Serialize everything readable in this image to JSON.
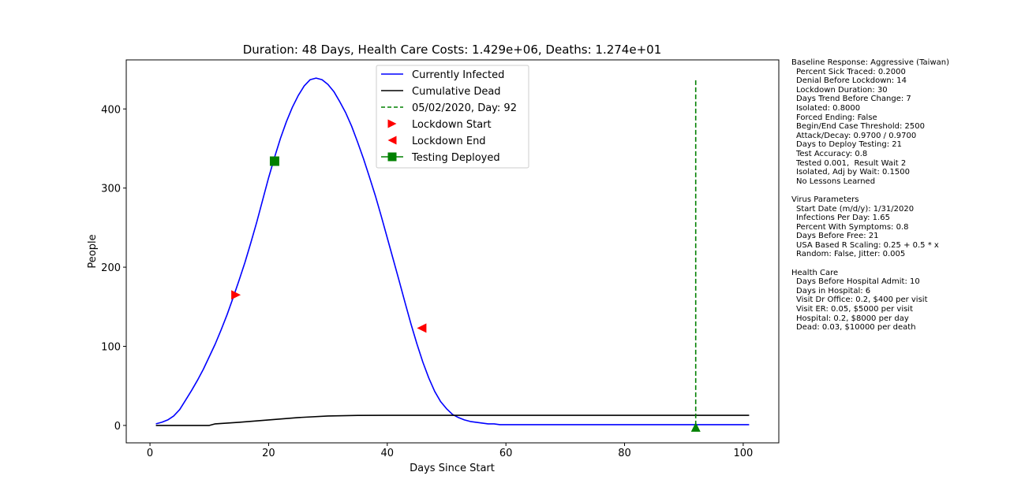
{
  "chart_data": {
    "type": "line",
    "title": "Duration: 48 Days,    Health Care Costs: 1.429e+06,    Deaths: 1.274e+01",
    "xlabel": "Days Since Start",
    "ylabel": "People",
    "xlim": [
      -4,
      106
    ],
    "ylim": [
      -22,
      462
    ],
    "x_ticks": [
      0,
      20,
      40,
      60,
      80,
      100
    ],
    "y_ticks": [
      0,
      100,
      200,
      300,
      400
    ],
    "grid": false,
    "legend_position": "top-center",
    "series": [
      {
        "name": "Currently Infected",
        "color": "#0000ff",
        "style": "solid",
        "x": [
          1,
          2,
          3,
          4,
          5,
          6,
          7,
          8,
          9,
          10,
          11,
          12,
          13,
          14,
          15,
          16,
          17,
          18,
          19,
          20,
          21,
          22,
          23,
          24,
          25,
          26,
          27,
          28,
          29,
          30,
          31,
          32,
          33,
          34,
          35,
          36,
          37,
          38,
          39,
          40,
          41,
          42,
          43,
          44,
          45,
          46,
          47,
          48,
          49,
          50,
          51,
          52,
          53,
          54,
          55,
          56,
          57,
          58,
          59,
          60,
          62,
          65,
          70,
          80,
          90,
          101
        ],
        "y": [
          2,
          4,
          7,
          12,
          20,
          32,
          44,
          57,
          71,
          87,
          103,
          121,
          140,
          161,
          183,
          206,
          231,
          257,
          285,
          313,
          339,
          363,
          384,
          402,
          417,
          429,
          437,
          439,
          437,
          431,
          422,
          409,
          395,
          378,
          358,
          337,
          314,
          290,
          264,
          237,
          210,
          183,
          155,
          128,
          103,
          80,
          60,
          43,
          30,
          21,
          14,
          10,
          7,
          5,
          4,
          3,
          2,
          2,
          1,
          1,
          1,
          1,
          1,
          1,
          1,
          1
        ]
      },
      {
        "name": "Cumulative Dead",
        "color": "#000000",
        "style": "solid",
        "x": [
          1,
          10,
          11,
          15,
          20,
          25,
          30,
          35,
          40,
          45,
          101
        ],
        "y": [
          0,
          0,
          2,
          4,
          7,
          10,
          12,
          12.7,
          12.74,
          12.74,
          12.74
        ]
      },
      {
        "name": "05/02/2020, Day: 92",
        "color": "#008000",
        "style": "dashed",
        "x": [
          92,
          92
        ],
        "y": [
          0,
          437
        ]
      }
    ],
    "markers": [
      {
        "name": "Lockdown Start",
        "shape": "triangle-right",
        "color": "#ff0000",
        "x": 14.5,
        "y": 165
      },
      {
        "name": "Lockdown End",
        "shape": "triangle-left",
        "color": "#ff0000",
        "x": 45.8,
        "y": 123
      },
      {
        "name": "Testing Deployed",
        "shape": "square",
        "color": "#008000",
        "x": 21,
        "y": 334
      },
      {
        "name": "day-92-marker",
        "shape": "triangle-up",
        "color": "#008000",
        "x": 92,
        "y": -2
      }
    ],
    "legend": [
      {
        "label": "Currently Infected",
        "kind": "line",
        "color": "#0000ff"
      },
      {
        "label": "Cumulative Dead",
        "kind": "line",
        "color": "#000000"
      },
      {
        "label": "05/02/2020, Day: 92",
        "kind": "dashed",
        "color": "#008000"
      },
      {
        "label": "Lockdown Start",
        "kind": "triangle-right",
        "color": "#ff0000"
      },
      {
        "label": "Lockdown End",
        "kind": "triangle-left",
        "color": "#ff0000"
      },
      {
        "label": "Testing Deployed",
        "kind": "square-line",
        "color": "#008000"
      }
    ]
  },
  "side_panel": {
    "sections": [
      {
        "heading": "Baseline Response: Aggressive (Taiwan)",
        "lines": [
          "Percent Sick Traced: 0.2000",
          "Denial Before Lockdown: 14",
          "Lockdown Duration: 30",
          "Days Trend Before Change: 7",
          "Isolated: 0.8000",
          "Forced Ending: False",
          "Begin/End Case Threshold: 2500",
          "Attack/Decay: 0.9700 / 0.9700",
          "Days to Deploy Testing: 21",
          "Test Accuracy: 0.8",
          "Tested 0.001,  Result Wait 2",
          "Isolated, Adj by Wait: 0.1500",
          "No Lessons Learned"
        ]
      },
      {
        "heading": "Virus Parameters",
        "lines": [
          "Start Date (m/d/y): 1/31/2020",
          "Infections Per Day: 1.65",
          "Percent With Symptoms: 0.8",
          "Days Before Free: 21",
          "USA Based R Scaling: 0.25 + 0.5 * x",
          "Random: False, Jitter: 0.005"
        ]
      },
      {
        "heading": "Health Care",
        "lines": [
          "Days Before Hospital Admit: 10",
          "Days in Hospital: 6",
          "Visit Dr Office: 0.2, $400 per visit",
          "Visit ER: 0.05, $5000 per visit",
          "Hospital: 0.2, $8000 per day",
          "Dead: 0.03, $10000 per death"
        ]
      }
    ]
  }
}
